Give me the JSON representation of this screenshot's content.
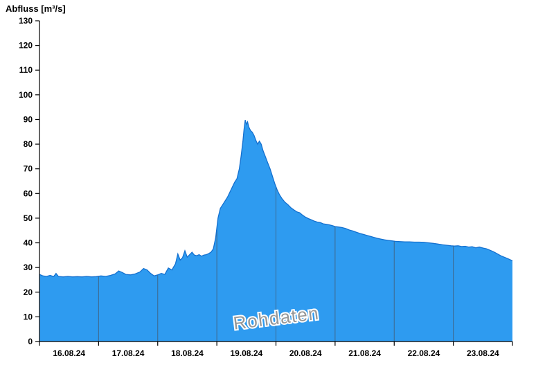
{
  "title": "Abfluss [m³/s]",
  "watermark": "Rohdaten",
  "colors": {
    "fill": "#2e9bf0",
    "stroke": "#1470cf",
    "axis": "#000000",
    "grid": "#44566b",
    "watermark": "#979797",
    "background": "#ffffff"
  },
  "chart_data": {
    "type": "area",
    "title": "Abfluss [m³/s]",
    "xlabel": "",
    "ylabel": "Abfluss [m³/s]",
    "ylim": [
      0,
      130
    ],
    "y_ticks": [
      0,
      10,
      20,
      30,
      40,
      50,
      60,
      70,
      80,
      90,
      100,
      110,
      120,
      130
    ],
    "x_labels": [
      "16.08.24",
      "17.08.24",
      "18.08.24",
      "19.08.24",
      "20.08.24",
      "21.08.24",
      "22.08.24",
      "23.08.24"
    ],
    "x_range_days": 8,
    "x_start": "16.08.24 00:00",
    "grid": "vertical-daily",
    "legend": "none",
    "annotations": [
      "Rohdaten"
    ],
    "series_name": "Abfluss",
    "unit": "m³/s",
    "points": [
      [
        0.0,
        27.2
      ],
      [
        0.06,
        26.6
      ],
      [
        0.12,
        26.4
      ],
      [
        0.18,
        26.8
      ],
      [
        0.24,
        26.3
      ],
      [
        0.28,
        27.6
      ],
      [
        0.32,
        26.4
      ],
      [
        0.4,
        26.2
      ],
      [
        0.48,
        26.4
      ],
      [
        0.56,
        26.2
      ],
      [
        0.64,
        26.3
      ],
      [
        0.72,
        26.2
      ],
      [
        0.8,
        26.4
      ],
      [
        0.88,
        26.2
      ],
      [
        0.96,
        26.3
      ],
      [
        1.04,
        26.6
      ],
      [
        1.12,
        26.4
      ],
      [
        1.2,
        26.8
      ],
      [
        1.28,
        27.4
      ],
      [
        1.34,
        28.6
      ],
      [
        1.4,
        28.0
      ],
      [
        1.46,
        27.2
      ],
      [
        1.54,
        27.0
      ],
      [
        1.62,
        27.4
      ],
      [
        1.7,
        28.2
      ],
      [
        1.76,
        29.6
      ],
      [
        1.82,
        29.0
      ],
      [
        1.88,
        27.6
      ],
      [
        1.94,
        26.6
      ],
      [
        2.0,
        27.0
      ],
      [
        2.06,
        27.6
      ],
      [
        2.12,
        27.2
      ],
      [
        2.18,
        29.8
      ],
      [
        2.24,
        29.0
      ],
      [
        2.3,
        31.5
      ],
      [
        2.34,
        35.5
      ],
      [
        2.38,
        33.0
      ],
      [
        2.42,
        34.0
      ],
      [
        2.46,
        36.8
      ],
      [
        2.5,
        34.2
      ],
      [
        2.54,
        35.2
      ],
      [
        2.58,
        36.2
      ],
      [
        2.62,
        35.0
      ],
      [
        2.66,
        34.8
      ],
      [
        2.7,
        35.2
      ],
      [
        2.74,
        34.6
      ],
      [
        2.78,
        35.0
      ],
      [
        2.82,
        35.2
      ],
      [
        2.86,
        35.6
      ],
      [
        2.9,
        36.2
      ],
      [
        2.94,
        37.5
      ],
      [
        2.98,
        42.0
      ],
      [
        3.02,
        50.0
      ],
      [
        3.06,
        54.0
      ],
      [
        3.1,
        55.5
      ],
      [
        3.14,
        57.0
      ],
      [
        3.18,
        58.5
      ],
      [
        3.22,
        60.5
      ],
      [
        3.26,
        62.5
      ],
      [
        3.3,
        64.5
      ],
      [
        3.34,
        66.0
      ],
      [
        3.38,
        70.0
      ],
      [
        3.41,
        75.0
      ],
      [
        3.44,
        81.0
      ],
      [
        3.46,
        86.0
      ],
      [
        3.48,
        89.8
      ],
      [
        3.5,
        88.0
      ],
      [
        3.52,
        89.0
      ],
      [
        3.54,
        87.0
      ],
      [
        3.57,
        85.5
      ],
      [
        3.6,
        84.8
      ],
      [
        3.63,
        83.5
      ],
      [
        3.66,
        81.5
      ],
      [
        3.69,
        80.0
      ],
      [
        3.72,
        81.2
      ],
      [
        3.75,
        80.0
      ],
      [
        3.78,
        77.5
      ],
      [
        3.82,
        75.0
      ],
      [
        3.86,
        72.5
      ],
      [
        3.9,
        70.0
      ],
      [
        3.94,
        67.0
      ],
      [
        3.98,
        64.0
      ],
      [
        4.02,
        61.5
      ],
      [
        4.06,
        59.5
      ],
      [
        4.1,
        58.0
      ],
      [
        4.15,
        56.5
      ],
      [
        4.2,
        55.5
      ],
      [
        4.25,
        54.3
      ],
      [
        4.3,
        53.4
      ],
      [
        4.35,
        52.6
      ],
      [
        4.4,
        52.2
      ],
      [
        4.45,
        51.2
      ],
      [
        4.5,
        50.4
      ],
      [
        4.55,
        49.8
      ],
      [
        4.6,
        49.3
      ],
      [
        4.65,
        48.8
      ],
      [
        4.7,
        48.4
      ],
      [
        4.75,
        48.2
      ],
      [
        4.8,
        47.7
      ],
      [
        4.85,
        47.5
      ],
      [
        4.9,
        47.3
      ],
      [
        4.95,
        47.0
      ],
      [
        5.0,
        46.6
      ],
      [
        5.06,
        46.4
      ],
      [
        5.12,
        46.2
      ],
      [
        5.18,
        45.8
      ],
      [
        5.24,
        45.2
      ],
      [
        5.3,
        44.8
      ],
      [
        5.36,
        44.3
      ],
      [
        5.42,
        43.8
      ],
      [
        5.48,
        43.4
      ],
      [
        5.54,
        43.0
      ],
      [
        5.6,
        42.6
      ],
      [
        5.66,
        42.2
      ],
      [
        5.72,
        41.8
      ],
      [
        5.78,
        41.5
      ],
      [
        5.84,
        41.2
      ],
      [
        5.9,
        41.0
      ],
      [
        5.96,
        40.8
      ],
      [
        6.02,
        40.6
      ],
      [
        6.1,
        40.5
      ],
      [
        6.18,
        40.4
      ],
      [
        6.26,
        40.4
      ],
      [
        6.34,
        40.3
      ],
      [
        6.42,
        40.3
      ],
      [
        6.5,
        40.2
      ],
      [
        6.58,
        40.0
      ],
      [
        6.66,
        39.8
      ],
      [
        6.74,
        39.5
      ],
      [
        6.82,
        39.2
      ],
      [
        6.9,
        39.0
      ],
      [
        6.96,
        38.8
      ],
      [
        7.02,
        38.7
      ],
      [
        7.08,
        38.8
      ],
      [
        7.14,
        38.5
      ],
      [
        7.2,
        38.6
      ],
      [
        7.26,
        38.3
      ],
      [
        7.32,
        38.4
      ],
      [
        7.38,
        38.0
      ],
      [
        7.44,
        38.3
      ],
      [
        7.5,
        37.9
      ],
      [
        7.56,
        37.6
      ],
      [
        7.62,
        37.0
      ],
      [
        7.68,
        36.4
      ],
      [
        7.74,
        35.6
      ],
      [
        7.8,
        34.8
      ],
      [
        7.86,
        34.2
      ],
      [
        7.92,
        33.6
      ],
      [
        8.0,
        32.7
      ]
    ]
  }
}
